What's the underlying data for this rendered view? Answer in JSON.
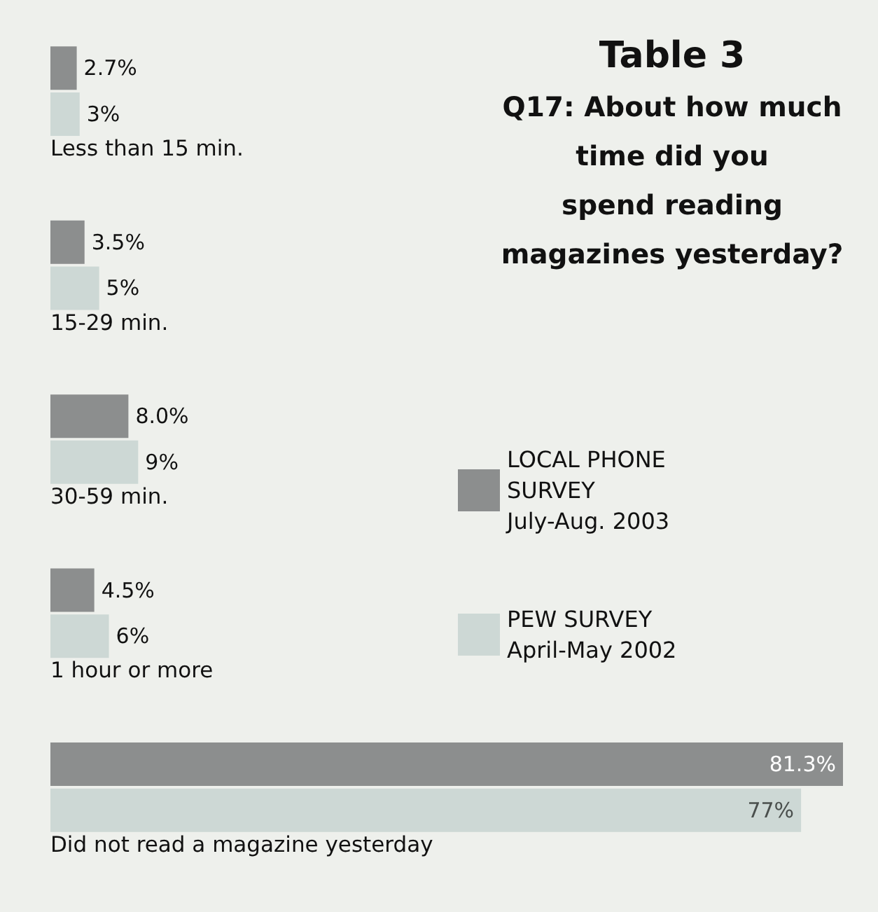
{
  "chart_data": {
    "type": "bar",
    "orientation": "horizontal",
    "title": "Table 3",
    "subtitle": "Q17: About how much\ntime did you\nspend reading\nmagazines yesterday?",
    "categories": [
      "Less than 15 min.",
      "15-29 min.",
      "30-59 min.",
      "1 hour or more",
      "Did not read a magazine yesterday"
    ],
    "series": [
      {
        "name": "LOCAL PHONE SURVEY July-Aug. 2003",
        "color": "#8c8e8e",
        "values": [
          2.7,
          3.5,
          8.0,
          4.5,
          81.3
        ],
        "value_labels": [
          "2.7%",
          "3.5%",
          "8.0%",
          "4.5%",
          "81.3%"
        ]
      },
      {
        "name": "PEW SURVEY April-May 2002",
        "color": "#cdd8d5",
        "values": [
          3,
          5,
          9,
          6,
          77
        ],
        "value_labels": [
          "3%",
          "5%",
          "9%",
          "6%",
          "77%"
        ]
      }
    ],
    "legend": "right"
  }
}
